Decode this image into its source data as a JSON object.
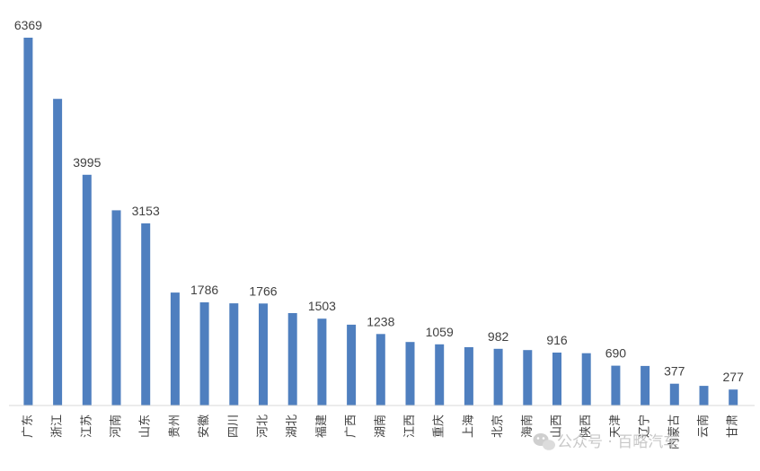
{
  "chart_data": {
    "type": "bar",
    "title": "",
    "xlabel": "",
    "ylabel": "",
    "ylim": [
      0,
      6500
    ],
    "grid": false,
    "legend": "none",
    "bar_color": "#4f7fbf",
    "categories": [
      "广东",
      "浙江",
      "江苏",
      "河南",
      "山东",
      "贵州",
      "安徽",
      "四川",
      "河北",
      "湖北",
      "福建",
      "广西",
      "湖南",
      "江西",
      "重庆",
      "上海",
      "北京",
      "海南",
      "山西",
      "陕西",
      "天津",
      "辽宁",
      "内蒙古",
      "云南",
      "甘肃"
    ],
    "values": [
      6369,
      5310,
      3995,
      3380,
      3153,
      1955,
      1786,
      1770,
      1766,
      1600,
      1503,
      1400,
      1238,
      1100,
      1059,
      1010,
      982,
      960,
      916,
      905,
      690,
      685,
      377,
      340,
      277
    ],
    "labels": [
      "6369",
      "",
      "3995",
      "",
      "3153",
      "",
      "1786",
      "",
      "1766",
      "",
      "1503",
      "",
      "1238",
      "",
      "1059",
      "",
      "982",
      "",
      "916",
      "",
      "690",
      "",
      "377",
      "",
      "277"
    ]
  },
  "watermark": "公众号 · 百略汽车"
}
